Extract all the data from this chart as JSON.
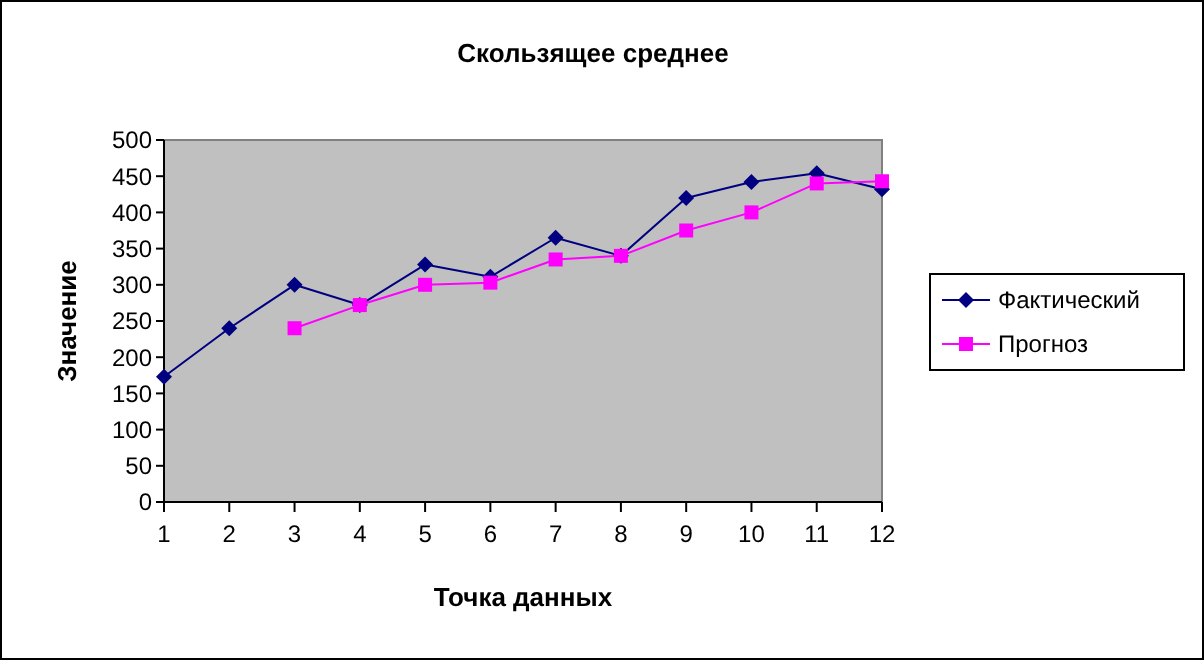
{
  "chart_data": {
    "type": "line",
    "title": "Скользящее среднее",
    "xlabel": "Точка данных",
    "ylabel": "Значение",
    "x": [
      1,
      2,
      3,
      4,
      5,
      6,
      7,
      8,
      9,
      10,
      11,
      12
    ],
    "xlim": [
      1,
      12
    ],
    "xticks": [
      1,
      2,
      3,
      4,
      5,
      6,
      7,
      8,
      9,
      10,
      11,
      12
    ],
    "ylim": [
      0,
      500
    ],
    "yticks": [
      0,
      50,
      100,
      150,
      200,
      250,
      300,
      350,
      400,
      450,
      500
    ],
    "grid": false,
    "legend": "right",
    "series": [
      {
        "name": "Фактический",
        "color": "#000080",
        "marker": "diamond",
        "values": [
          173,
          240,
          300,
          272,
          328,
          311,
          365,
          340,
          420,
          442,
          454,
          432
        ]
      },
      {
        "name": "Прогноз",
        "color": "#ff00ff",
        "marker": "square",
        "values": [
          null,
          null,
          240,
          272,
          300,
          303,
          335,
          340,
          375,
          400,
          440,
          443
        ]
      }
    ]
  }
}
